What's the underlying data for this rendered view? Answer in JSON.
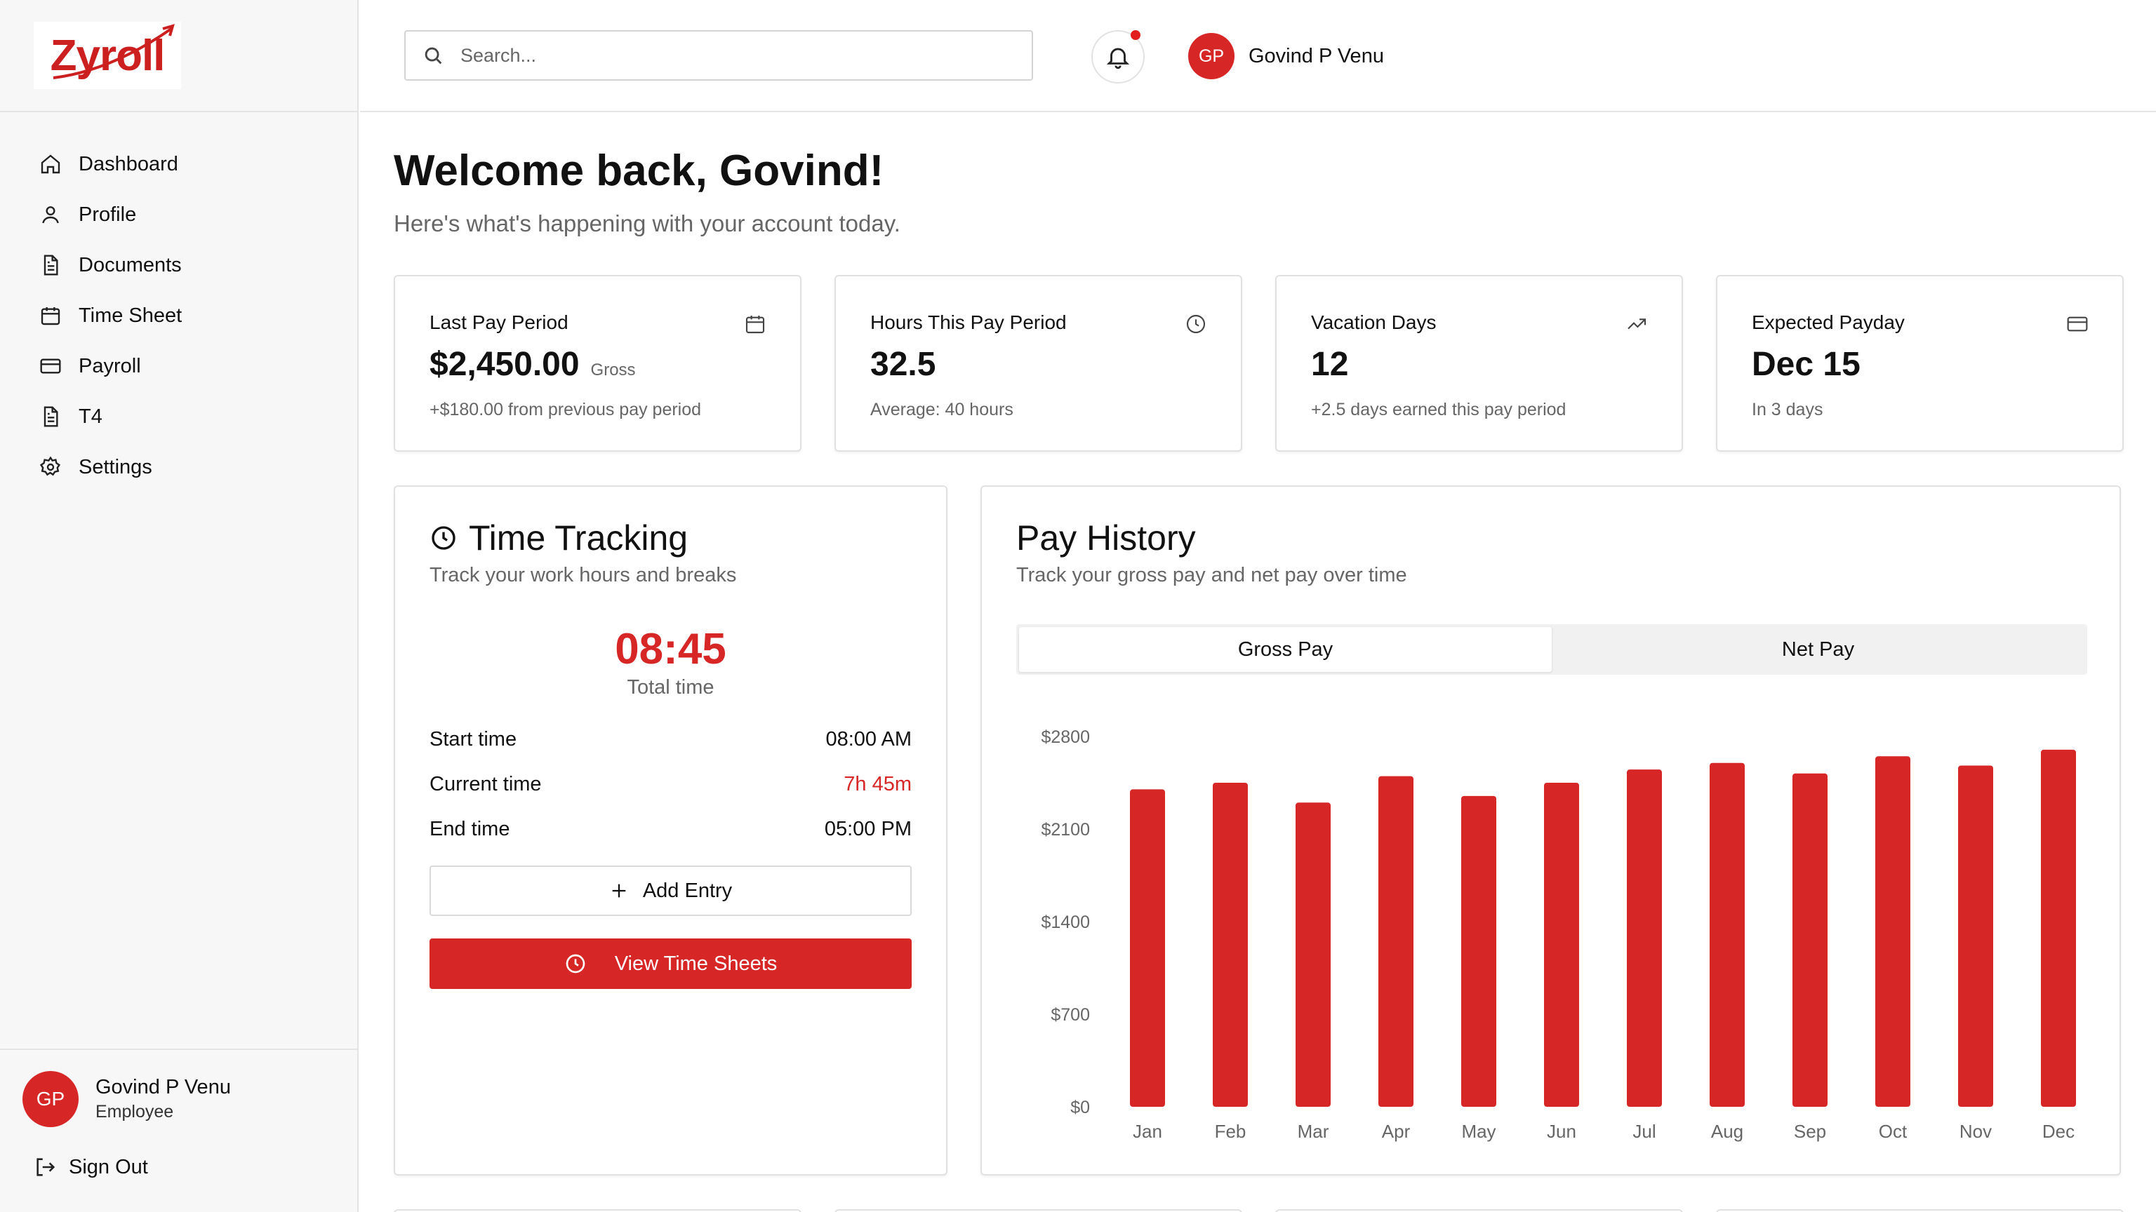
{
  "app": {
    "logo_text": "Zyroll",
    "brand_color": "#d72626"
  },
  "sidebar": {
    "items": [
      {
        "label": "Dashboard",
        "icon": "home-icon"
      },
      {
        "label": "Profile",
        "icon": "user-icon"
      },
      {
        "label": "Documents",
        "icon": "document-icon"
      },
      {
        "label": "Time Sheet",
        "icon": "calendar-icon"
      },
      {
        "label": "Payroll",
        "icon": "credit-card-icon"
      },
      {
        "label": "T4",
        "icon": "document-icon"
      },
      {
        "label": "Settings",
        "icon": "gear-icon"
      }
    ],
    "user": {
      "initials": "GP",
      "name": "Govind P Venu",
      "role": "Employee"
    },
    "sign_out": "Sign Out"
  },
  "header": {
    "search_placeholder": "Search...",
    "user": {
      "initials": "GP",
      "name": "Govind P Venu"
    }
  },
  "main": {
    "welcome": "Welcome back, Govind!",
    "subtitle": "Here's what's happening with your account today.",
    "stats": [
      {
        "label": "Last Pay Period",
        "value": "$2,450.00",
        "value_suffix": "Gross",
        "sub": "+$180.00 from previous pay period",
        "icon": "calendar-icon"
      },
      {
        "label": "Hours This Pay Period",
        "value": "32.5",
        "value_suffix": "",
        "sub": "Average: 40 hours",
        "icon": "clock-icon"
      },
      {
        "label": "Vacation Days",
        "value": "12",
        "value_suffix": "",
        "sub": "+2.5 days earned this pay period",
        "icon": "trending-up-icon"
      },
      {
        "label": "Expected Payday",
        "value": "Dec 15",
        "value_suffix": "",
        "sub": "In 3 days",
        "icon": "credit-card-icon"
      }
    ],
    "time_tracking": {
      "title": "Time Tracking",
      "subtitle": "Track your work hours and breaks",
      "total_time": "08:45",
      "total_label": "Total time",
      "rows": [
        {
          "label": "Start time",
          "value": "08:00 AM"
        },
        {
          "label": "Current time",
          "value": "7h 45m"
        },
        {
          "label": "End time",
          "value": "05:00 PM"
        }
      ],
      "add_entry": "Add Entry",
      "view_sheets": "View Time Sheets"
    },
    "pay_history": {
      "title": "Pay History",
      "subtitle": "Track your gross pay and net pay over time",
      "tabs": [
        "Gross Pay",
        "Net Pay"
      ],
      "active_tab": "Gross Pay"
    }
  },
  "chart_data": {
    "type": "bar",
    "categories": [
      "Jan",
      "Feb",
      "Mar",
      "Apr",
      "May",
      "Jun",
      "Jul",
      "Aug",
      "Sep",
      "Oct",
      "Nov",
      "Dec"
    ],
    "values": [
      2400,
      2450,
      2300,
      2500,
      2350,
      2450,
      2550,
      2600,
      2520,
      2650,
      2580,
      2700
    ],
    "y_ticks": [
      "$0",
      "$700",
      "$1400",
      "$2100",
      "$2800"
    ],
    "ylim": [
      0,
      2800
    ],
    "grid": false,
    "bar_color": "#d72626"
  }
}
